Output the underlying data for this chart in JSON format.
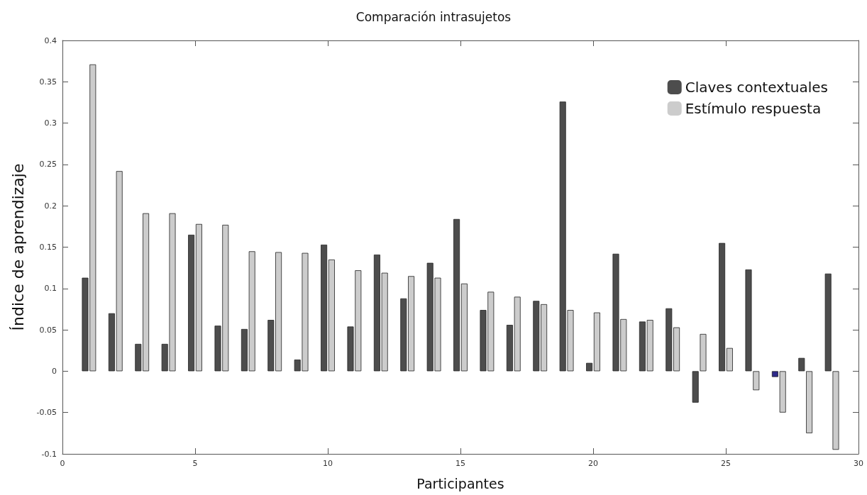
{
  "chart_data": {
    "type": "bar",
    "title": "Comparación intrasujetos",
    "xlabel": "Participantes",
    "ylabel": "Índice de aprendizaje",
    "x": [
      1,
      2,
      3,
      4,
      5,
      6,
      7,
      8,
      9,
      10,
      11,
      12,
      13,
      14,
      15,
      16,
      17,
      18,
      19,
      20,
      21,
      22,
      23,
      24,
      25,
      26,
      27,
      28,
      29
    ],
    "series": [
      {
        "name": "Claves contextuales",
        "color": "#4d4d4d",
        "colors": [
          "#4d4d4d",
          "#4d4d4d",
          "#4d4d4d",
          "#4d4d4d",
          "#4d4d4d",
          "#4d4d4d",
          "#4d4d4d",
          "#4d4d4d",
          "#4d4d4d",
          "#4d4d4d",
          "#4d4d4d",
          "#4d4d4d",
          "#4d4d4d",
          "#4d4d4d",
          "#4d4d4d",
          "#4d4d4d",
          "#4d4d4d",
          "#4d4d4d",
          "#4d4d4d",
          "#4d4d4d",
          "#4d4d4d",
          "#4d4d4d",
          "#4d4d4d",
          "#4d4d4d",
          "#4d4d4d",
          "#4d4d4d",
          "#2e2a8a",
          "#4d4d4d",
          "#4d4d4d"
        ],
        "values": [
          0.113,
          0.07,
          0.033,
          0.033,
          0.165,
          0.055,
          0.051,
          0.062,
          0.014,
          0.153,
          0.054,
          0.141,
          0.088,
          0.131,
          0.184,
          0.074,
          0.056,
          0.085,
          0.326,
          0.01,
          0.142,
          0.06,
          0.076,
          -0.038,
          0.155,
          0.123,
          -0.007,
          0.016,
          0.118
        ]
      },
      {
        "name": "Estímulo respuesta",
        "color": "#cccccc",
        "values": [
          0.371,
          0.242,
          0.191,
          0.191,
          0.178,
          0.177,
          0.145,
          0.144,
          0.143,
          0.135,
          0.122,
          0.119,
          0.115,
          0.113,
          0.106,
          0.096,
          0.09,
          0.081,
          0.074,
          0.071,
          0.063,
          0.062,
          0.053,
          0.045,
          0.028,
          -0.023,
          -0.05,
          -0.075,
          -0.095
        ]
      }
    ],
    "xlim": [
      0,
      30
    ],
    "xticks": [
      0,
      5,
      10,
      15,
      20,
      25,
      30
    ],
    "ylim": [
      -0.1,
      0.4
    ],
    "yticks": [
      -0.1,
      -0.05,
      0,
      0.05,
      0.1,
      0.15,
      0.2,
      0.25,
      0.3,
      0.35,
      0.4
    ],
    "grid": false,
    "legend": "top right"
  }
}
